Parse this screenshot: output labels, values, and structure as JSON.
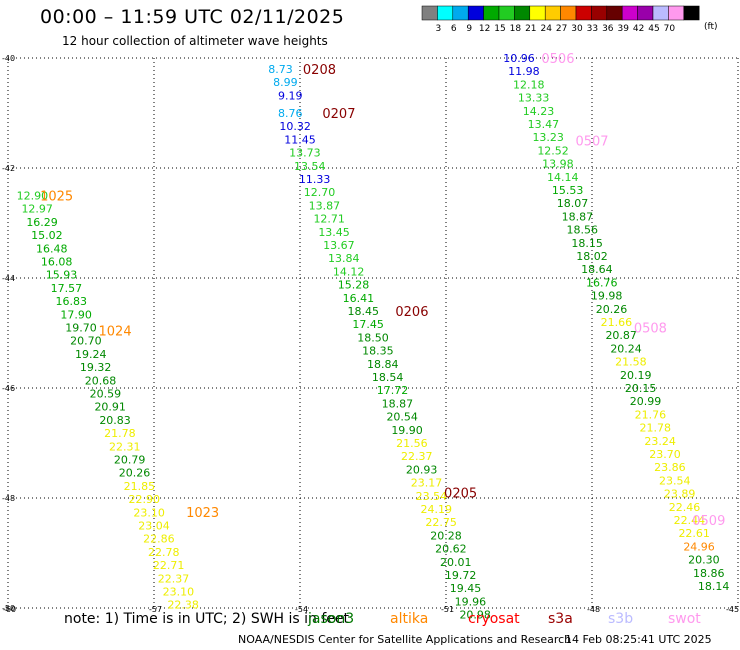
{
  "header": {
    "title": "00:00 – 11:59 UTC 02/11/2025",
    "subtitle": "12 hour collection of altimeter wave heights"
  },
  "colorbar": {
    "colors": [
      "#808080",
      "#00ffff",
      "#00aaee",
      "#0000dd",
      "#00aa00",
      "#22cc22",
      "#008800",
      "#ffff00",
      "#ffcc00",
      "#ff8800",
      "#cc0000",
      "#990000",
      "#660000",
      "#cc00cc",
      "#9900aa",
      "#bbbbff",
      "#ff99ee",
      "#000000"
    ],
    "labels": [
      "3",
      "6",
      "9",
      "12",
      "15",
      "18",
      "21",
      "24",
      "27",
      "30",
      "33",
      "36",
      "39",
      "42",
      "45",
      "70"
    ],
    "units": "(ft)"
  },
  "footer": {
    "note": "note:  1) Time is in UTC; 2) SWH is in feet",
    "credit": "NOAA/NESDIS Center for Satellite Applications and Research",
    "timestamp": "14 Feb 08:25:41 UTC 2025",
    "satellites": [
      {
        "name": "jason3",
        "color": "#007700",
        "x": 308
      },
      {
        "name": "altika",
        "color": "#ff8800",
        "x": 390
      },
      {
        "name": "cryosat",
        "color": "#ff0000",
        "x": 468
      },
      {
        "name": "s3a",
        "color": "#990000",
        "x": 548
      },
      {
        "name": "s3b",
        "color": "#bbbbff",
        "x": 608
      },
      {
        "name": "swot",
        "color": "#ff99ee",
        "x": 668
      }
    ]
  },
  "chart_data": {
    "type": "scatter",
    "title": "00:00 – 11:59 UTC 02/11/2025",
    "subtitle": "12 hour collection of altimeter wave heights",
    "xlim": [
      -60,
      -45
    ],
    "ylim": [
      -50,
      -40
    ],
    "xticks": [
      "-60",
      "-57",
      "-54",
      "-51",
      "-48",
      "-45"
    ],
    "yticks": [
      "-40",
      "-42",
      "-44",
      "-46",
      "-48",
      "-50"
    ],
    "grid": true,
    "colors": {
      "gray": "#808080",
      "cyan": "#00ffff",
      "sky": "#00aaee",
      "blue": "#0000dd",
      "green": "#00aa00",
      "lime": "#22cc22",
      "dgreen": "#008800",
      "yellow": "#eeee00",
      "orange": "#ff8800",
      "brown": "#880000",
      "pink": "#ff99ee"
    },
    "series": [
      {
        "name": "1025",
        "color": "#ff8800",
        "lon": -59.0,
        "lat": -42.5,
        "points": [
          {
            "lon": -59.5,
            "lat": -42.5,
            "v": "12.90",
            "c": "lime"
          },
          {
            "lon": -59.4,
            "lat": -42.74,
            "v": "12.97",
            "c": "lime"
          },
          {
            "lon": -59.3,
            "lat": -42.98,
            "v": "16.29",
            "c": "green"
          },
          {
            "lon": -59.2,
            "lat": -43.22,
            "v": "15.02",
            "c": "green"
          },
          {
            "lon": -59.1,
            "lat": -43.46,
            "v": "16.48",
            "c": "green"
          },
          {
            "lon": -59.0,
            "lat": -43.7,
            "v": "16.08",
            "c": "green"
          },
          {
            "lon": -58.9,
            "lat": -43.94,
            "v": "15.93",
            "c": "green"
          },
          {
            "lon": -58.8,
            "lat": -44.18,
            "v": "17.57",
            "c": "green"
          },
          {
            "lon": -58.7,
            "lat": -44.42,
            "v": "16.83",
            "c": "green"
          },
          {
            "lon": -58.6,
            "lat": -44.66,
            "v": "17.90",
            "c": "green"
          },
          {
            "lon": -58.5,
            "lat": -44.9,
            "v": "19.70",
            "c": "dgreen"
          },
          {
            "lon": -58.4,
            "lat": -45.14,
            "v": "20.70",
            "c": "dgreen"
          },
          {
            "lon": -58.3,
            "lat": -45.38,
            "v": "19.24",
            "c": "dgreen"
          },
          {
            "lon": -58.2,
            "lat": -45.62,
            "v": "19.32",
            "c": "dgreen"
          },
          {
            "lon": -58.1,
            "lat": -45.86,
            "v": "20.68",
            "c": "dgreen"
          }
        ]
      },
      {
        "name": "1024",
        "color": "#ff8800",
        "lon": -57.8,
        "lat": -44.95,
        "points": [
          {
            "lon": -58.0,
            "lat": -46.1,
            "v": "20.59",
            "c": "dgreen"
          },
          {
            "lon": -57.9,
            "lat": -46.34,
            "v": "20.91",
            "c": "dgreen"
          },
          {
            "lon": -57.8,
            "lat": -46.58,
            "v": "20.83",
            "c": "dgreen"
          },
          {
            "lon": -57.7,
            "lat": -46.82,
            "v": "21.78",
            "c": "yellow"
          },
          {
            "lon": -57.6,
            "lat": -47.06,
            "v": "22.31",
            "c": "yellow"
          },
          {
            "lon": -57.5,
            "lat": -47.3,
            "v": "20.79",
            "c": "dgreen"
          },
          {
            "lon": -57.4,
            "lat": -47.54,
            "v": "20.26",
            "c": "dgreen"
          },
          {
            "lon": -57.3,
            "lat": -47.78,
            "v": "21.85",
            "c": "yellow"
          }
        ]
      },
      {
        "name": "1023",
        "color": "#ff8800",
        "lon": -56.0,
        "lat": -48.25,
        "points": [
          {
            "lon": -57.2,
            "lat": -48.02,
            "v": "22.90",
            "c": "yellow"
          },
          {
            "lon": -57.1,
            "lat": -48.26,
            "v": "23.10",
            "c": "yellow"
          },
          {
            "lon": -57.0,
            "lat": -48.5,
            "v": "23.04",
            "c": "yellow"
          },
          {
            "lon": -56.9,
            "lat": -48.74,
            "v": "22.86",
            "c": "yellow"
          },
          {
            "lon": -56.8,
            "lat": -48.98,
            "v": "22.78",
            "c": "yellow"
          },
          {
            "lon": -56.7,
            "lat": -49.22,
            "v": "22.71",
            "c": "yellow"
          },
          {
            "lon": -56.6,
            "lat": -49.46,
            "v": "22.37",
            "c": "yellow"
          },
          {
            "lon": -56.5,
            "lat": -49.7,
            "v": "23.10",
            "c": "yellow"
          },
          {
            "lon": -56.4,
            "lat": -49.94,
            "v": "22.38",
            "c": "yellow"
          }
        ]
      },
      {
        "name": "0208",
        "color": "#880000",
        "lon": -53.6,
        "lat": -40.2,
        "points": [
          {
            "lon": -54.4,
            "lat": -40.2,
            "v": "8.73",
            "c": "sky"
          },
          {
            "lon": -54.3,
            "lat": -40.44,
            "v": "8.99",
            "c": "sky"
          },
          {
            "lon": -54.2,
            "lat": -40.68,
            "v": "9.19",
            "c": "blue"
          }
        ]
      },
      {
        "name": "0207",
        "color": "#880000",
        "lon": -53.2,
        "lat": -41.0,
        "points": [
          {
            "lon": -54.2,
            "lat": -41.0,
            "v": "8.76",
            "c": "sky"
          },
          {
            "lon": -54.1,
            "lat": -41.24,
            "v": "10.32",
            "c": "blue"
          },
          {
            "lon": -54.0,
            "lat": -41.48,
            "v": "11.45",
            "c": "blue"
          },
          {
            "lon": -53.9,
            "lat": -41.72,
            "v": "13.73",
            "c": "lime"
          },
          {
            "lon": -53.8,
            "lat": -41.96,
            "v": "13.54",
            "c": "lime"
          },
          {
            "lon": -53.7,
            "lat": -42.2,
            "v": "11.33",
            "c": "blue"
          },
          {
            "lon": -53.6,
            "lat": -42.44,
            "v": "12.70",
            "c": "lime"
          },
          {
            "lon": -53.5,
            "lat": -42.68,
            "v": "13.87",
            "c": "lime"
          },
          {
            "lon": -53.4,
            "lat": -42.92,
            "v": "12.71",
            "c": "lime"
          },
          {
            "lon": -53.3,
            "lat": -43.16,
            "v": "13.45",
            "c": "lime"
          },
          {
            "lon": -53.2,
            "lat": -43.4,
            "v": "13.67",
            "c": "lime"
          },
          {
            "lon": -53.1,
            "lat": -43.64,
            "v": "13.84",
            "c": "lime"
          },
          {
            "lon": -53.0,
            "lat": -43.88,
            "v": "14.12",
            "c": "lime"
          }
        ]
      },
      {
        "name": "0206",
        "color": "#880000",
        "lon": -51.7,
        "lat": -44.6,
        "points": [
          {
            "lon": -52.9,
            "lat": -44.12,
            "v": "15.28",
            "c": "green"
          },
          {
            "lon": -52.8,
            "lat": -44.36,
            "v": "16.41",
            "c": "green"
          },
          {
            "lon": -52.7,
            "lat": -44.6,
            "v": "18.45",
            "c": "dgreen"
          },
          {
            "lon": -52.6,
            "lat": -44.84,
            "v": "17.45",
            "c": "green"
          },
          {
            "lon": -52.5,
            "lat": -45.08,
            "v": "18.50",
            "c": "dgreen"
          },
          {
            "lon": -52.4,
            "lat": -45.32,
            "v": "18.35",
            "c": "dgreen"
          },
          {
            "lon": -52.3,
            "lat": -45.56,
            "v": "18.84",
            "c": "dgreen"
          },
          {
            "lon": -52.2,
            "lat": -45.8,
            "v": "18.54",
            "c": "dgreen"
          },
          {
            "lon": -52.1,
            "lat": -46.04,
            "v": "17.72",
            "c": "green"
          },
          {
            "lon": -52.0,
            "lat": -46.28,
            "v": "18.87",
            "c": "dgreen"
          },
          {
            "lon": -51.9,
            "lat": -46.52,
            "v": "20.54",
            "c": "dgreen"
          },
          {
            "lon": -51.8,
            "lat": -46.76,
            "v": "19.90",
            "c": "dgreen"
          },
          {
            "lon": -51.7,
            "lat": -47.0,
            "v": "21.56",
            "c": "yellow"
          },
          {
            "lon": -51.6,
            "lat": -47.24,
            "v": "22.37",
            "c": "yellow"
          },
          {
            "lon": -51.5,
            "lat": -47.48,
            "v": "20.93",
            "c": "dgreen"
          },
          {
            "lon": -51.4,
            "lat": -47.72,
            "v": "23.17",
            "c": "yellow"
          }
        ]
      },
      {
        "name": "0205",
        "color": "#880000",
        "lon": -50.7,
        "lat": -47.9,
        "points": [
          {
            "lon": -51.3,
            "lat": -47.96,
            "v": "23.54",
            "c": "yellow"
          },
          {
            "lon": -51.2,
            "lat": -48.2,
            "v": "24.19",
            "c": "yellow"
          },
          {
            "lon": -51.1,
            "lat": -48.44,
            "v": "22.75",
            "c": "yellow"
          },
          {
            "lon": -51.0,
            "lat": -48.68,
            "v": "20.28",
            "c": "dgreen"
          },
          {
            "lon": -50.9,
            "lat": -48.92,
            "v": "20.62",
            "c": "dgreen"
          },
          {
            "lon": -50.8,
            "lat": -49.16,
            "v": "20.01",
            "c": "dgreen"
          },
          {
            "lon": -50.7,
            "lat": -49.4,
            "v": "19.72",
            "c": "dgreen"
          },
          {
            "lon": -50.6,
            "lat": -49.64,
            "v": "19.45",
            "c": "dgreen"
          },
          {
            "lon": -50.5,
            "lat": -49.88,
            "v": "19.96",
            "c": "dgreen"
          },
          {
            "lon": -50.4,
            "lat": -50.12,
            "v": "20.98",
            "c": "dgreen"
          }
        ]
      },
      {
        "name": "0506",
        "color": "#ff99ee",
        "lon": -48.7,
        "lat": -40.0,
        "points": [
          {
            "lon": -49.5,
            "lat": -40.0,
            "v": "10.96",
            "c": "blue"
          },
          {
            "lon": -49.4,
            "lat": -40.24,
            "v": "11.98",
            "c": "blue"
          },
          {
            "lon": -49.3,
            "lat": -40.48,
            "v": "12.18",
            "c": "lime"
          },
          {
            "lon": -49.2,
            "lat": -40.72,
            "v": "13.33",
            "c": "lime"
          },
          {
            "lon": -49.1,
            "lat": -40.96,
            "v": "14.23",
            "c": "lime"
          },
          {
            "lon": -49.0,
            "lat": -41.2,
            "v": "13.47",
            "c": "lime"
          }
        ]
      },
      {
        "name": "0507",
        "color": "#ff99ee",
        "lon": -48.0,
        "lat": -41.5,
        "points": [
          {
            "lon": -48.9,
            "lat": -41.44,
            "v": "13.23",
            "c": "lime"
          },
          {
            "lon": -48.8,
            "lat": -41.68,
            "v": "12.52",
            "c": "lime"
          },
          {
            "lon": -48.7,
            "lat": -41.92,
            "v": "13.98",
            "c": "lime"
          },
          {
            "lon": -48.6,
            "lat": -42.16,
            "v": "14.14",
            "c": "lime"
          },
          {
            "lon": -48.5,
            "lat": -42.4,
            "v": "15.53",
            "c": "green"
          },
          {
            "lon": -48.4,
            "lat": -42.64,
            "v": "18.07",
            "c": "dgreen"
          },
          {
            "lon": -48.3,
            "lat": -42.88,
            "v": "18.87",
            "c": "dgreen"
          },
          {
            "lon": -48.2,
            "lat": -43.12,
            "v": "18.56",
            "c": "dgreen"
          },
          {
            "lon": -48.1,
            "lat": -43.36,
            "v": "18.15",
            "c": "dgreen"
          },
          {
            "lon": -48.0,
            "lat": -43.6,
            "v": "18.02",
            "c": "dgreen"
          },
          {
            "lon": -47.9,
            "lat": -43.84,
            "v": "18.64",
            "c": "dgreen"
          },
          {
            "lon": -47.8,
            "lat": -44.08,
            "v": "16.76",
            "c": "green"
          },
          {
            "lon": -47.7,
            "lat": -44.32,
            "v": "19.98",
            "c": "dgreen"
          },
          {
            "lon": -47.6,
            "lat": -44.56,
            "v": "20.26",
            "c": "dgreen"
          }
        ]
      },
      {
        "name": "0508",
        "color": "#ff99ee",
        "lon": -46.8,
        "lat": -44.9,
        "points": [
          {
            "lon": -47.5,
            "lat": -44.8,
            "v": "21.66",
            "c": "yellow"
          },
          {
            "lon": -47.4,
            "lat": -45.04,
            "v": "20.87",
            "c": "dgreen"
          },
          {
            "lon": -47.3,
            "lat": -45.28,
            "v": "20.24",
            "c": "dgreen"
          },
          {
            "lon": -47.2,
            "lat": -45.52,
            "v": "21.58",
            "c": "yellow"
          },
          {
            "lon": -47.1,
            "lat": -45.76,
            "v": "20.19",
            "c": "dgreen"
          },
          {
            "lon": -47.0,
            "lat": -46.0,
            "v": "20.15",
            "c": "dgreen"
          },
          {
            "lon": -46.9,
            "lat": -46.24,
            "v": "20.99",
            "c": "dgreen"
          },
          {
            "lon": -46.8,
            "lat": -46.48,
            "v": "21.76",
            "c": "yellow"
          },
          {
            "lon": -46.7,
            "lat": -46.72,
            "v": "21.78",
            "c": "yellow"
          },
          {
            "lon": -46.6,
            "lat": -46.96,
            "v": "23.24",
            "c": "yellow"
          },
          {
            "lon": -46.5,
            "lat": -47.2,
            "v": "23.70",
            "c": "yellow"
          },
          {
            "lon": -46.4,
            "lat": -47.44,
            "v": "23.86",
            "c": "yellow"
          },
          {
            "lon": -46.3,
            "lat": -47.68,
            "v": "23.54",
            "c": "yellow"
          }
        ]
      },
      {
        "name": "0509",
        "color": "#ff99ee",
        "lon": -45.6,
        "lat": -48.4,
        "points": [
          {
            "lon": -46.2,
            "lat": -47.92,
            "v": "23.89",
            "c": "yellow"
          },
          {
            "lon": -46.1,
            "lat": -48.16,
            "v": "22.46",
            "c": "yellow"
          },
          {
            "lon": -46.0,
            "lat": -48.4,
            "v": "22.44",
            "c": "yellow"
          },
          {
            "lon": -45.9,
            "lat": -48.64,
            "v": "22.61",
            "c": "yellow"
          },
          {
            "lon": -45.8,
            "lat": -48.88,
            "v": "24.96",
            "c": "orange"
          },
          {
            "lon": -45.7,
            "lat": -49.12,
            "v": "20.30",
            "c": "dgreen"
          },
          {
            "lon": -45.6,
            "lat": -49.36,
            "v": "18.86",
            "c": "dgreen"
          },
          {
            "lon": -45.5,
            "lat": -49.6,
            "v": "18.14",
            "c": "dgreen"
          }
        ]
      }
    ]
  }
}
